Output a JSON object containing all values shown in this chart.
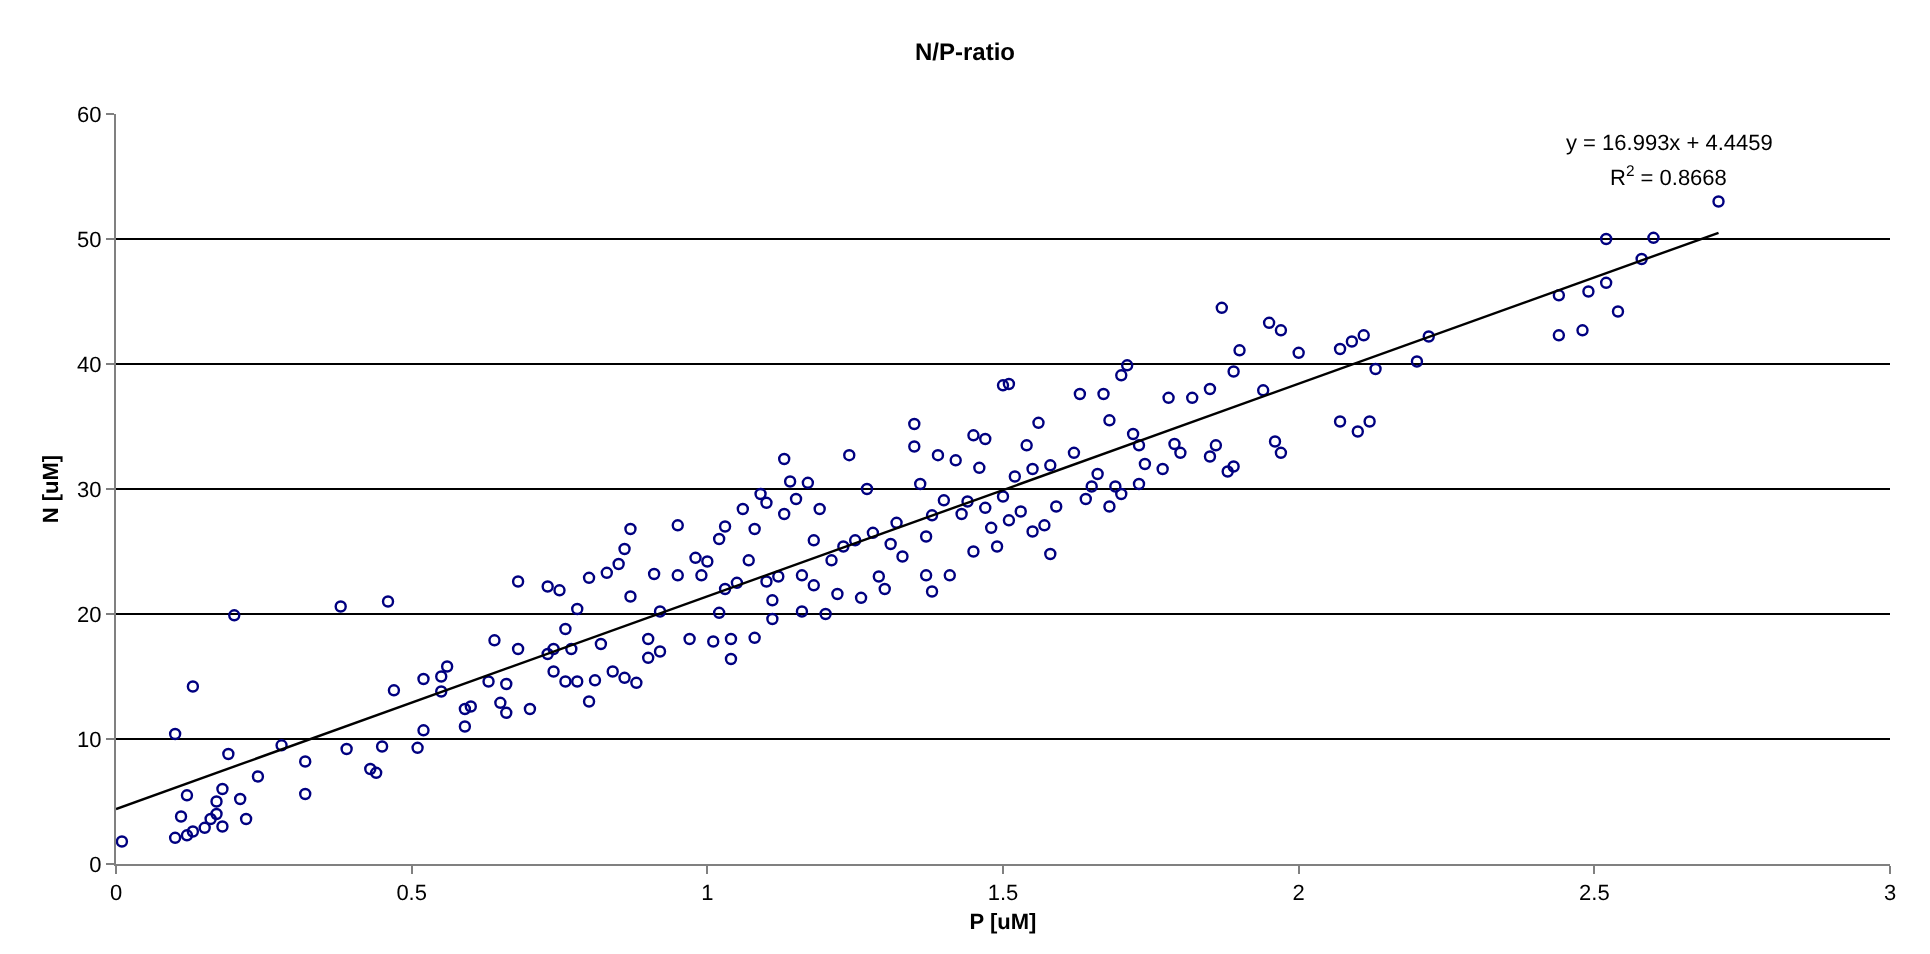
{
  "chart_data": {
    "type": "scatter",
    "title": "N/P-ratio",
    "xlabel": "P [uM]",
    "ylabel": "N [uM]",
    "xlim": [
      0,
      3
    ],
    "xticks": [
      0,
      0.5,
      1,
      1.5,
      2,
      2.5,
      3
    ],
    "ylim": [
      0,
      60
    ],
    "yticks": [
      0,
      10,
      20,
      30,
      40,
      50,
      60
    ],
    "grid": "y",
    "marker": "circle",
    "annotations": [
      "y = 16.993x + 4.4459",
      "R$^{2}$ = 0.8668"
    ],
    "series": [
      {
        "color": "#000080",
        "x": [
          0.01,
          0.1,
          0.1,
          0.11,
          0.12,
          0.12,
          0.13,
          0.13,
          0.15,
          0.16,
          0.17,
          0.17,
          0.18,
          0.18,
          0.19,
          0.2,
          0.21,
          0.22,
          0.24,
          0.28,
          0.32,
          0.32,
          0.38,
          0.39,
          0.43,
          0.44,
          0.45,
          0.46,
          0.47,
          0.51,
          0.52,
          0.52,
          0.55,
          0.55,
          0.56,
          0.59,
          0.59,
          0.6,
          0.63,
          0.64,
          0.65,
          0.66,
          0.66,
          0.68,
          0.68,
          0.7,
          0.73,
          0.73,
          0.74,
          0.74,
          0.75,
          0.76,
          0.76,
          0.77,
          0.78,
          0.78,
          0.8,
          0.8,
          0.81,
          0.82,
          0.83,
          0.84,
          0.85,
          0.86,
          0.86,
          0.87,
          0.87,
          0.88,
          0.9,
          0.9,
          0.91,
          0.92,
          0.92,
          0.95,
          0.95,
          0.97,
          0.98,
          0.99,
          1.0,
          1.01,
          1.02,
          1.02,
          1.03,
          1.03,
          1.04,
          1.04,
          1.05,
          1.06,
          1.07,
          1.08,
          1.08,
          1.09,
          1.1,
          1.1,
          1.11,
          1.11,
          1.12,
          1.13,
          1.13,
          1.14,
          1.15,
          1.16,
          1.16,
          1.17,
          1.18,
          1.18,
          1.19,
          1.2,
          1.21,
          1.22,
          1.23,
          1.24,
          1.25,
          1.26,
          1.27,
          1.28,
          1.29,
          1.3,
          1.31,
          1.32,
          1.33,
          1.35,
          1.35,
          1.36,
          1.37,
          1.37,
          1.38,
          1.38,
          1.39,
          1.4,
          1.41,
          1.42,
          1.43,
          1.44,
          1.45,
          1.45,
          1.46,
          1.47,
          1.47,
          1.48,
          1.49,
          1.5,
          1.5,
          1.51,
          1.51,
          1.52,
          1.53,
          1.54,
          1.55,
          1.55,
          1.56,
          1.57,
          1.58,
          1.58,
          1.59,
          1.62,
          1.63,
          1.64,
          1.65,
          1.66,
          1.67,
          1.68,
          1.68,
          1.69,
          1.7,
          1.7,
          1.71,
          1.72,
          1.73,
          1.73,
          1.74,
          1.77,
          1.78,
          1.79,
          1.8,
          1.82,
          1.85,
          1.85,
          1.86,
          1.87,
          1.88,
          1.89,
          1.89,
          1.9,
          1.94,
          1.95,
          1.96,
          1.97,
          1.97,
          2.0,
          2.07,
          2.07,
          2.09,
          2.1,
          2.11,
          2.12,
          2.13,
          2.2,
          2.22,
          2.44,
          2.44,
          2.48,
          2.49,
          2.52,
          2.52,
          2.54,
          2.58,
          2.6,
          2.71
        ],
        "values": [
          1.8,
          10.4,
          2.1,
          3.8,
          5.5,
          2.3,
          14.2,
          2.6,
          2.9,
          3.6,
          4.0,
          5.0,
          3.0,
          6.0,
          8.8,
          19.9,
          5.2,
          3.6,
          7.0,
          9.5,
          8.2,
          5.6,
          20.6,
          9.2,
          7.6,
          7.3,
          9.4,
          21.0,
          13.9,
          9.3,
          10.7,
          14.8,
          13.8,
          15.0,
          15.8,
          12.4,
          11.0,
          12.6,
          14.6,
          17.9,
          12.9,
          14.4,
          12.1,
          22.6,
          17.2,
          12.4,
          16.8,
          22.2,
          17.2,
          15.4,
          21.9,
          18.8,
          14.6,
          17.2,
          20.4,
          14.6,
          13.0,
          22.9,
          14.7,
          17.6,
          23.3,
          15.4,
          24.0,
          14.9,
          25.2,
          21.4,
          26.8,
          14.5,
          18.0,
          16.5,
          23.2,
          20.2,
          17.0,
          27.1,
          23.1,
          18.0,
          24.5,
          23.1,
          24.2,
          17.8,
          20.1,
          26.0,
          27.0,
          22.0,
          18.0,
          16.4,
          22.5,
          28.4,
          24.3,
          26.8,
          18.1,
          29.6,
          22.6,
          28.9,
          21.1,
          19.6,
          23.0,
          28.0,
          32.4,
          30.6,
          29.2,
          20.2,
          23.1,
          30.5,
          25.9,
          22.3,
          28.4,
          20.0,
          24.3,
          21.6,
          25.4,
          32.7,
          25.9,
          21.3,
          30.0,
          26.5,
          23.0,
          22.0,
          25.6,
          27.3,
          24.6,
          35.2,
          33.4,
          30.4,
          26.2,
          23.1,
          27.9,
          21.8,
          32.7,
          29.1,
          23.1,
          32.3,
          28.0,
          29.0,
          34.3,
          25.0,
          31.7,
          28.5,
          34.0,
          26.9,
          25.4,
          29.4,
          38.3,
          38.4,
          27.5,
          31.0,
          28.2,
          33.5,
          31.6,
          26.6,
          35.3,
          27.1,
          31.9,
          24.8,
          28.6,
          32.9,
          37.6,
          29.2,
          30.2,
          31.2,
          37.6,
          28.6,
          35.5,
          30.2,
          39.1,
          29.6,
          39.9,
          34.4,
          30.4,
          33.5,
          32.0,
          31.6,
          37.3,
          33.6,
          32.9,
          37.3,
          38.0,
          32.6,
          33.5,
          44.5,
          31.4,
          31.8,
          39.4,
          41.1,
          37.9,
          43.3,
          33.8,
          42.7,
          32.9,
          40.9,
          35.4,
          41.2,
          41.8,
          34.6,
          42.3,
          35.4,
          39.6,
          40.2,
          42.2,
          42.3,
          45.5,
          42.7,
          45.8,
          46.5,
          50.0,
          44.2,
          48.4,
          50.1,
          53.0
        ]
      },
      {
        "type": "line",
        "color": "#000000",
        "marker": "none",
        "line_style": "solid",
        "x": [
          0,
          2.71
        ],
        "values": [
          4.4,
          50.5
        ]
      }
    ]
  }
}
